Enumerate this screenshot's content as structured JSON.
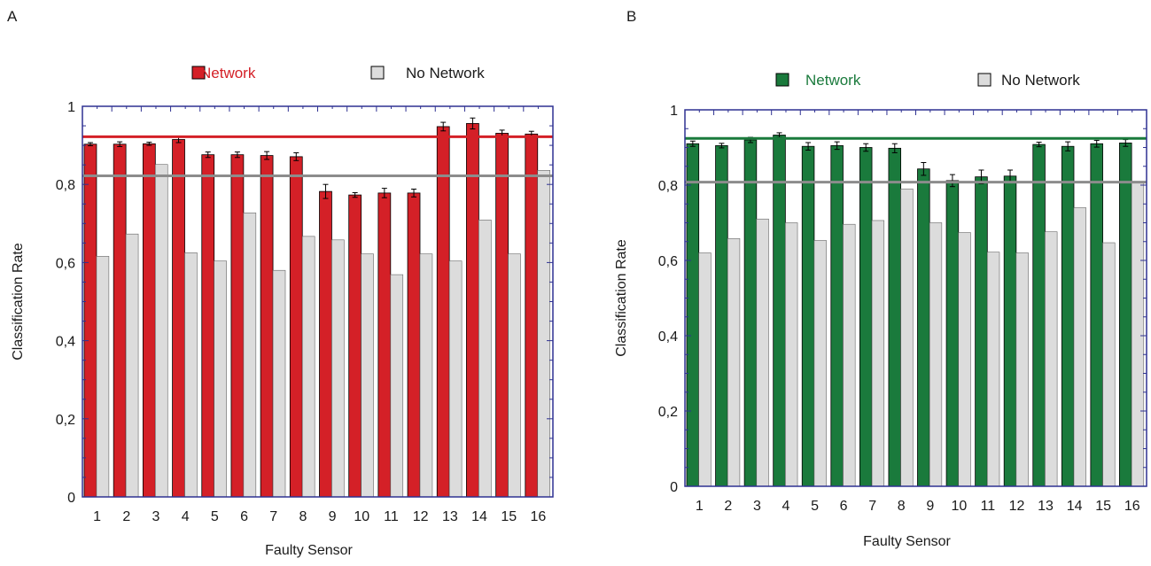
{
  "chart_data": [
    {
      "panel_label": "A",
      "type": "bar",
      "xlabel": "Faulty Sensor",
      "ylabel": "Classification Rate",
      "ylim": [
        0,
        1
      ],
      "yticks": [
        "0",
        "0,2",
        "0,4",
        "0,6",
        "0,8",
        "1"
      ],
      "categories": [
        "1",
        "2",
        "3",
        "4",
        "5",
        "6",
        "7",
        "8",
        "9",
        "10",
        "11",
        "12",
        "13",
        "14",
        "15",
        "16"
      ],
      "series": [
        {
          "name": "Network",
          "color": "#d42027",
          "values": [
            0.903,
            0.903,
            0.904,
            0.915,
            0.876,
            0.876,
            0.874,
            0.871,
            0.782,
            0.773,
            0.778,
            0.778,
            0.948,
            0.956,
            0.931,
            0.929
          ],
          "errors": [
            0.004,
            0.006,
            0.004,
            0.008,
            0.007,
            0.007,
            0.01,
            0.01,
            0.018,
            0.006,
            0.012,
            0.01,
            0.011,
            0.014,
            0.008,
            0.007
          ]
        },
        {
          "name": "No Network",
          "color": "#dcdcdc",
          "values": [
            0.616,
            0.673,
            0.851,
            0.625,
            0.604,
            0.727,
            0.58,
            0.667,
            0.658,
            0.622,
            0.569,
            0.622,
            0.604,
            0.709,
            0.622,
            0.836
          ]
        }
      ],
      "reference_lines": [
        {
          "series": "Network",
          "value": 0.922,
          "color": "#d42027"
        },
        {
          "series": "No Network",
          "value": 0.822,
          "color": "#8c8c8c"
        }
      ],
      "legend_position": "top",
      "grid": false
    },
    {
      "panel_label": "B",
      "type": "bar",
      "xlabel": "Faulty Sensor",
      "ylabel": "Classification Rate",
      "ylim": [
        0,
        1
      ],
      "yticks": [
        "0",
        "0,2",
        "0,4",
        "0,6",
        "0,8",
        "1"
      ],
      "categories": [
        "1",
        "2",
        "3",
        "4",
        "5",
        "6",
        "7",
        "8",
        "9",
        "10",
        "11",
        "12",
        "13",
        "14",
        "15",
        "16"
      ],
      "series": [
        {
          "name": "Network",
          "color": "#1a7a3c",
          "values": [
            0.91,
            0.905,
            0.92,
            0.933,
            0.903,
            0.905,
            0.9,
            0.898,
            0.843,
            0.812,
            0.822,
            0.824,
            0.908,
            0.903,
            0.91,
            0.912
          ],
          "errors": [
            0.007,
            0.006,
            0.007,
            0.006,
            0.01,
            0.01,
            0.01,
            0.012,
            0.017,
            0.016,
            0.018,
            0.016,
            0.006,
            0.012,
            0.009,
            0.009
          ]
        },
        {
          "name": "No Network",
          "color": "#dcdcdc",
          "values": [
            0.62,
            0.658,
            0.71,
            0.7,
            0.653,
            0.696,
            0.706,
            0.79,
            0.7,
            0.674,
            0.622,
            0.62,
            0.676,
            0.74,
            0.647,
            0.808
          ]
        }
      ],
      "reference_lines": [
        {
          "series": "Network",
          "value": 0.924,
          "color": "#1a7a3c"
        },
        {
          "series": "No Network",
          "value": 0.808,
          "color": "#8c8c8c"
        }
      ],
      "legend_position": "top",
      "grid": false
    }
  ]
}
